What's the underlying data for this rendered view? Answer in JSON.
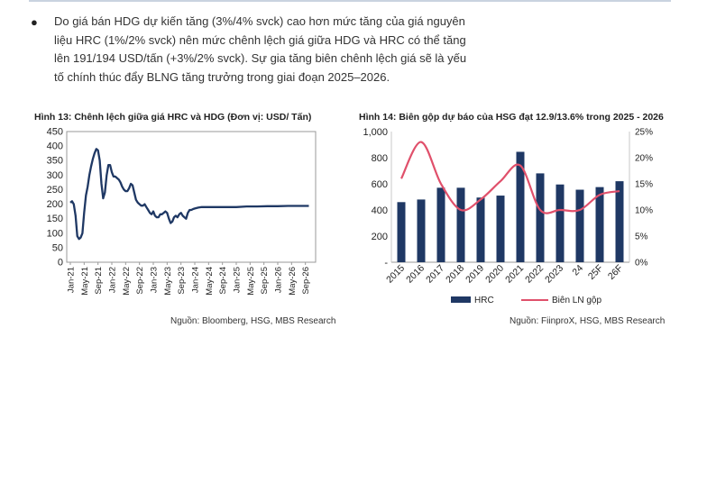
{
  "bullet": {
    "text": "Do giá bán HDG dự kiến tăng (3%/4% svck) cao hơn mức tăng của giá nguyên liệu HRC (1%/2% svck) nên mức chênh lệch giá giữa HDG và HRC có thể tăng lên 191/194 USD/tấn (+3%/2% svck). Sự gia tăng biên chênh lệch giá sẽ là yếu tố chính thúc đẩy BLNG tăng trưởng trong giai đoạn 2025–2026."
  },
  "figure13": {
    "title": "Hình 13: Chênh lệch giữa giá HRC và HDG (Đơn vị: USD/ Tấn)",
    "source": "Nguồn: Bloomberg, HSG, MBS Research"
  },
  "figure14": {
    "title": "Hình 14: Biên gộp dự báo của HSG đạt 12.9/13.6% trong 2025 - 2026",
    "source": "Nguồn: FiinproX, HSG, MBS Research"
  },
  "chart_data": [
    {
      "type": "line",
      "y_ticks": [
        "0",
        "50",
        "100",
        "150",
        "200",
        "250",
        "300",
        "350",
        "400",
        "450"
      ],
      "ylim": [
        0,
        450
      ],
      "x_ticks": [
        "Jan-21",
        "May-21",
        "Sep-21",
        "Jan-22",
        "May-22",
        "Sep-22",
        "Jan-23",
        "May-23",
        "Sep-23",
        "Jan-24",
        "May-24",
        "Sep-24",
        "Jan-25",
        "May-25",
        "Sep-25",
        "Jan-26",
        "May-26",
        "Sep-26"
      ],
      "x_month_range": [
        0,
        23
      ],
      "series": [
        {
          "color": "#1f3864",
          "points": [
            [
              0,
              205
            ],
            [
              0.5,
              210
            ],
            [
              1,
              200
            ],
            [
              1.5,
              160
            ],
            [
              2,
              90
            ],
            [
              2.5,
              80
            ],
            [
              3,
              85
            ],
            [
              3.5,
              100
            ],
            [
              4,
              170
            ],
            [
              4.5,
              230
            ],
            [
              5,
              260
            ],
            [
              5.5,
              300
            ],
            [
              6,
              330
            ],
            [
              6.5,
              355
            ],
            [
              7,
              375
            ],
            [
              7.5,
              390
            ],
            [
              8,
              385
            ],
            [
              8.5,
              350
            ],
            [
              9,
              270
            ],
            [
              9.5,
              220
            ],
            [
              10,
              240
            ],
            [
              10.5,
              300
            ],
            [
              11,
              335
            ],
            [
              11.5,
              335
            ],
            [
              12,
              310
            ],
            [
              12.5,
              295
            ],
            [
              13,
              295
            ],
            [
              13.5,
              290
            ],
            [
              14,
              285
            ],
            [
              14.5,
              275
            ],
            [
              15,
              260
            ],
            [
              15.5,
              250
            ],
            [
              16,
              245
            ],
            [
              16.5,
              245
            ],
            [
              17,
              255
            ],
            [
              17.5,
              270
            ],
            [
              18,
              265
            ],
            [
              18.5,
              240
            ],
            [
              19,
              215
            ],
            [
              19.5,
              205
            ],
            [
              20,
              200
            ],
            [
              20.5,
              195
            ],
            [
              21,
              195
            ],
            [
              21.5,
              200
            ],
            [
              22,
              190
            ],
            [
              22.5,
              180
            ],
            [
              23,
              170
            ],
            [
              23.5,
              165
            ],
            [
              24,
              175
            ],
            [
              24.5,
              160
            ],
            [
              25,
              155
            ],
            [
              25.5,
              155
            ],
            [
              26,
              165
            ],
            [
              26.5,
              165
            ],
            [
              27,
              170
            ],
            [
              27.5,
              175
            ],
            [
              28,
              170
            ],
            [
              28.5,
              150
            ],
            [
              29,
              135
            ],
            [
              29.5,
              140
            ],
            [
              30,
              155
            ],
            [
              30.5,
              160
            ],
            [
              31,
              155
            ],
            [
              31.5,
              165
            ],
            [
              32,
              170
            ],
            [
              32.5,
              160
            ],
            [
              33,
              155
            ],
            [
              33.5,
              150
            ],
            [
              34,
              170
            ],
            [
              34.5,
              180
            ],
            [
              35,
              180
            ],
            [
              35.5,
              183
            ],
            [
              36,
              185
            ],
            [
              37,
              188
            ],
            [
              38,
              190
            ],
            [
              40,
              190
            ],
            [
              42,
              190
            ],
            [
              45,
              190
            ],
            [
              48,
              190
            ],
            [
              51,
              192
            ],
            [
              54,
              192
            ],
            [
              57,
              193
            ],
            [
              60,
              193
            ],
            [
              63,
              194
            ],
            [
              66,
              194
            ],
            [
              69,
              194
            ]
          ]
        }
      ]
    },
    {
      "type": "bar",
      "categories": [
        "2015",
        "2016",
        "2017",
        "2018",
        "2019",
        "2020",
        "2021",
        "2022",
        "2023",
        "24",
        "25F",
        "26F"
      ],
      "y_ticks": [
        "-",
        "200",
        "400",
        "600",
        "800",
        "1,000"
      ],
      "ylim": [
        0,
        1000
      ],
      "y2_ticks": [
        "0%",
        "5%",
        "10%",
        "15%",
        "20%",
        "25%"
      ],
      "y2lim": [
        0,
        25
      ],
      "series": [
        {
          "name": "HRC",
          "type": "bar",
          "color": "#1f3864",
          "values": [
            460,
            480,
            570,
            570,
            495,
            510,
            845,
            680,
            595,
            555,
            575,
            620
          ]
        },
        {
          "name": "Biên LN gộp",
          "type": "line",
          "color": "#e0506b",
          "values": [
            16.0,
            23.0,
            15.0,
            10.0,
            12.0,
            15.5,
            18.5,
            10.0,
            10.0,
            10.0,
            12.9,
            13.6
          ]
        }
      ]
    }
  ]
}
